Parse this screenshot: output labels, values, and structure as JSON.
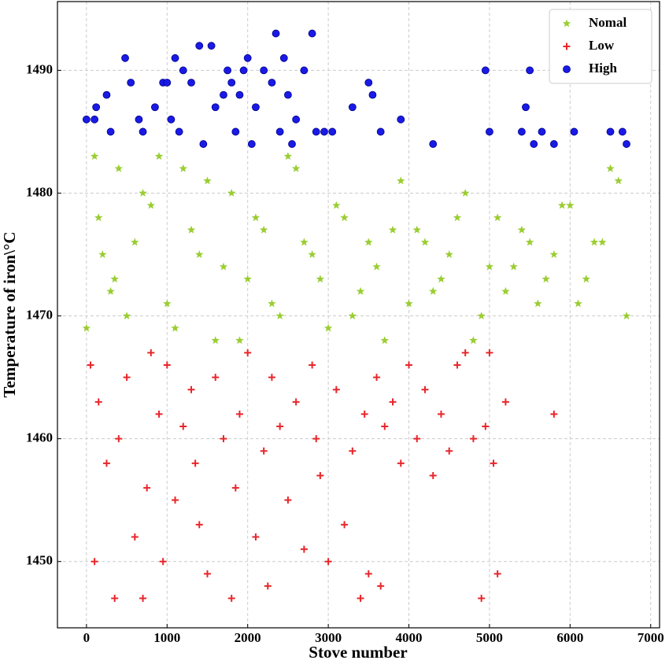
{
  "chart_data": {
    "type": "scatter",
    "x_label": "Stove number",
    "y_label": "Temperature of iron\\°C",
    "xlim": [
      -360,
      7110
    ],
    "ylim": [
      1444.6,
      1495.6
    ],
    "xticks": [
      0,
      1000,
      2000,
      3000,
      4000,
      5000,
      6000,
      7000
    ],
    "yticks": [
      1450,
      1460,
      1470,
      1480,
      1490
    ],
    "grid": true,
    "legend": "upper right",
    "series": [
      {
        "name": "Nomal",
        "color": "#9acd32",
        "marker": "star",
        "x": [
          100,
          200,
          300,
          400,
          500,
          700,
          900,
          1100,
          1300,
          1500,
          1700,
          1900,
          2100,
          2300,
          2500,
          2700,
          2900,
          3100,
          3300,
          3500,
          3700,
          3900,
          4100,
          4300,
          4500,
          4700,
          4900,
          5100,
          5300,
          5500,
          5700,
          5900,
          6100,
          6300,
          6500,
          6700,
          0,
          150,
          350,
          600,
          800,
          1000,
          1200,
          1400,
          1600,
          1800,
          2000,
          2200,
          2400,
          2600,
          2800,
          3000,
          3200,
          3400,
          3600,
          3800,
          4000,
          4200,
          4400,
          4600,
          4800,
          5000,
          5200,
          5400,
          5600,
          5800,
          6000,
          6200,
          6400,
          6600
        ],
        "y": [
          1483,
          1475,
          1472,
          1482,
          1470,
          1480,
          1483,
          1469,
          1477,
          1481,
          1474,
          1468,
          1478,
          1471,
          1483,
          1476,
          1473,
          1479,
          1470,
          1476,
          1468,
          1481,
          1477,
          1472,
          1475,
          1480,
          1470,
          1478,
          1474,
          1476,
          1473,
          1479,
          1471,
          1476,
          1482,
          1470,
          1469,
          1478,
          1473,
          1476,
          1479,
          1471,
          1482,
          1475,
          1468,
          1480,
          1473,
          1477,
          1470,
          1482,
          1475,
          1469,
          1478,
          1472,
          1474,
          1477,
          1471,
          1476,
          1473,
          1478,
          1468,
          1474,
          1472,
          1477,
          1471,
          1475,
          1479,
          1473,
          1476,
          1481
        ]
      },
      {
        "name": "Low",
        "color": "#e8262a",
        "marker": "plus",
        "x": [
          50,
          100,
          150,
          250,
          350,
          400,
          500,
          600,
          700,
          750,
          800,
          900,
          950,
          1000,
          1100,
          1200,
          1300,
          1350,
          1400,
          1500,
          1600,
          1700,
          1800,
          1850,
          1900,
          2000,
          2100,
          2200,
          2250,
          2300,
          2400,
          2500,
          2600,
          2700,
          2800,
          2850,
          2900,
          3000,
          3100,
          3200,
          3300,
          3400,
          3450,
          3500,
          3600,
          3650,
          3700,
          3800,
          3900,
          4000,
          4100,
          4200,
          4300,
          4400,
          4500,
          4600,
          4700,
          4800,
          4900,
          4950,
          5000,
          5050,
          5100,
          5200,
          5800
        ],
        "y": [
          1466,
          1450,
          1463,
          1458,
          1447,
          1460,
          1465,
          1452,
          1447,
          1456,
          1467,
          1462,
          1450,
          1466,
          1455,
          1461,
          1464,
          1458,
          1453,
          1449,
          1465,
          1460,
          1447,
          1456,
          1462,
          1467,
          1452,
          1459,
          1448,
          1465,
          1461,
          1455,
          1463,
          1451,
          1466,
          1460,
          1457,
          1450,
          1464,
          1453,
          1459,
          1447,
          1462,
          1449,
          1465,
          1448,
          1461,
          1463,
          1458,
          1466,
          1460,
          1464,
          1457,
          1462,
          1459,
          1466,
          1467,
          1460,
          1447,
          1461,
          1467,
          1458,
          1449,
          1463,
          1462
        ]
      },
      {
        "name": "High",
        "color": "#1a1ae6",
        "marker": "circle",
        "x": [
          0,
          100,
          120,
          250,
          300,
          480,
          550,
          650,
          700,
          850,
          950,
          1000,
          1050,
          1100,
          1150,
          1200,
          1300,
          1400,
          1450,
          1550,
          1600,
          1700,
          1750,
          1800,
          1850,
          1900,
          1950,
          2000,
          2050,
          2100,
          2200,
          2300,
          2350,
          2400,
          2450,
          2500,
          2550,
          2600,
          2700,
          2800,
          2850,
          2950,
          3050,
          3300,
          3500,
          3550,
          3650,
          3900,
          4300,
          4950,
          5000,
          5400,
          5450,
          5500,
          5550,
          5650,
          5800,
          6050,
          6500,
          6650,
          6700
        ],
        "y": [
          1486,
          1486,
          1487,
          1488,
          1485,
          1491,
          1489,
          1486,
          1485,
          1487,
          1489,
          1489,
          1486,
          1491,
          1485,
          1490,
          1489,
          1492,
          1484,
          1492,
          1487,
          1488,
          1490,
          1489,
          1485,
          1488,
          1490,
          1491,
          1484,
          1487,
          1490,
          1489,
          1493,
          1485,
          1491,
          1488,
          1484,
          1486,
          1490,
          1493,
          1485,
          1485,
          1485,
          1487,
          1489,
          1488,
          1485,
          1486,
          1484,
          1490,
          1485,
          1485,
          1487,
          1490,
          1484,
          1485,
          1484,
          1485,
          1485,
          1485,
          1484
        ]
      }
    ]
  }
}
